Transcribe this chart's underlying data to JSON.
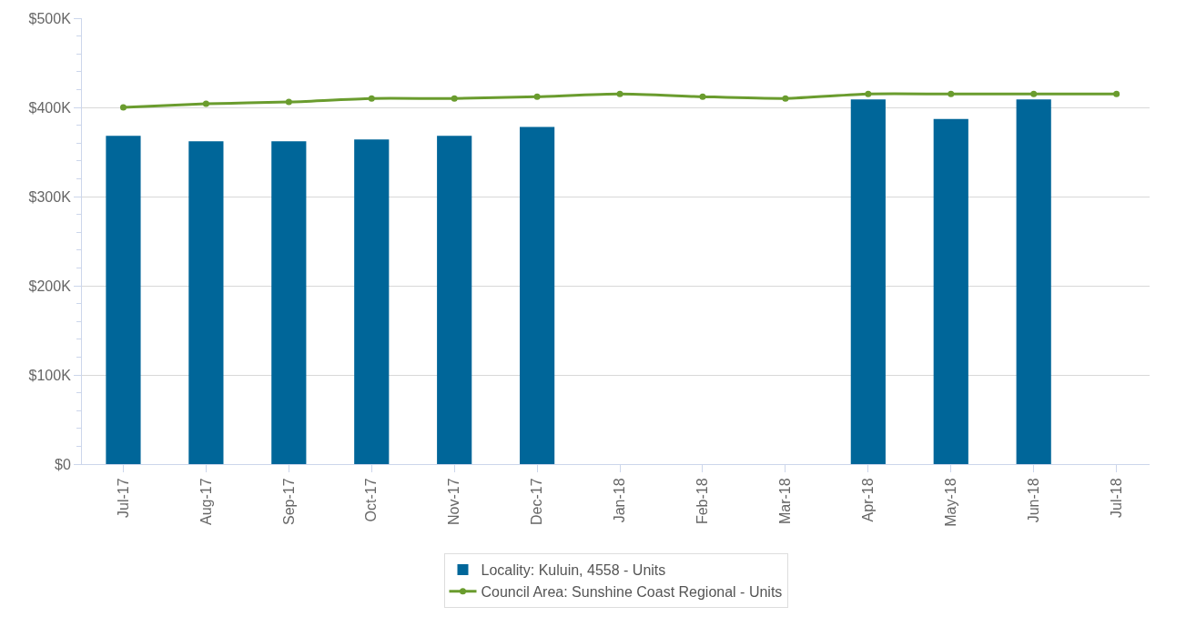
{
  "chart_data": {
    "type": "bar",
    "categories": [
      "Jul-17",
      "Aug-17",
      "Sep-17",
      "Oct-17",
      "Nov-17",
      "Dec-17",
      "Jan-18",
      "Feb-18",
      "Mar-18",
      "Apr-18",
      "May-18",
      "Jun-18",
      "Jul-18"
    ],
    "series": [
      {
        "name": "Locality: Kuluin, 4558 - Units",
        "color": "#006699",
        "values": [
          368000,
          362000,
          362000,
          364000,
          368000,
          378000,
          null,
          null,
          null,
          409000,
          387000,
          409000,
          null
        ]
      },
      {
        "name": "Council Area: Sunshine Coast Regional - Units",
        "type": "line",
        "color": "#6a9c2e",
        "marker": "circle",
        "values": [
          400000,
          404000,
          406000,
          410000,
          410000,
          412000,
          415000,
          412000,
          410000,
          415000,
          415000,
          415000,
          415000
        ]
      }
    ],
    "ylim": [
      0,
      500000
    ],
    "yticks": [
      {
        "value": 0,
        "label": "$0"
      },
      {
        "value": 100000,
        "label": "$100K"
      },
      {
        "value": 200000,
        "label": "$200K"
      },
      {
        "value": 300000,
        "label": "$300K"
      },
      {
        "value": 400000,
        "label": "$400K"
      },
      {
        "value": 500000,
        "label": "$500K"
      }
    ],
    "grid": "y",
    "legend": "bottom"
  }
}
